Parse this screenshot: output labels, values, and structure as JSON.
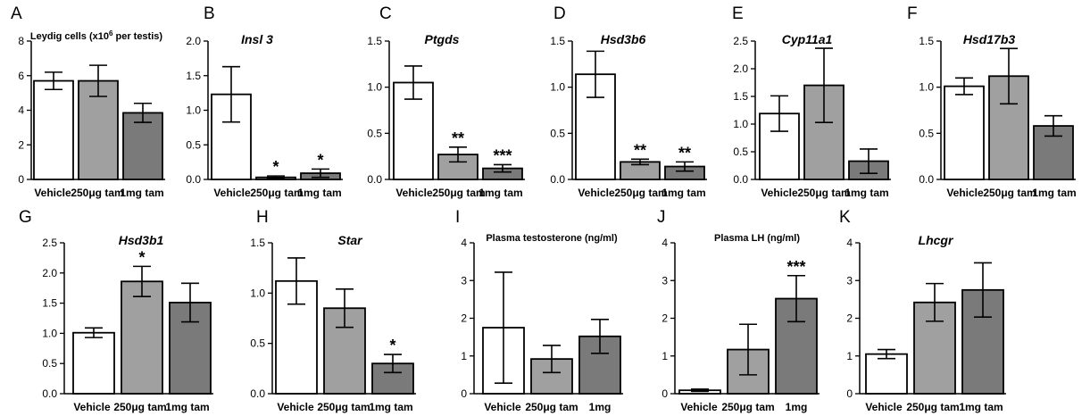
{
  "colors": {
    "vehicle": "#ffffff",
    "tam250": "#a0a0a0",
    "tam1mg": "#7a7a7a",
    "axis": "#000000"
  },
  "chart_data": [
    {
      "letter": "A",
      "type": "bar",
      "title": "Leydig cells (x10",
      "title_sup": "6",
      "title_tail": " per testis)",
      "title_italic": false,
      "categories": [
        "Vehicle",
        "250μg tam",
        "1mg tam"
      ],
      "values": [
        5.7,
        5.7,
        3.85
      ],
      "errors": [
        0.5,
        0.9,
        0.55
      ],
      "ylim": [
        0,
        8
      ],
      "yticks": [
        "0",
        "2",
        "4",
        "6",
        "8"
      ],
      "signif": [
        "",
        "",
        ""
      ]
    },
    {
      "letter": "B",
      "type": "bar",
      "title": "Insl 3",
      "title_italic": true,
      "categories": [
        "Vehicle",
        "250μg tam",
        "1mg tam"
      ],
      "values": [
        1.23,
        0.03,
        0.09
      ],
      "errors": [
        0.4,
        0.02,
        0.06
      ],
      "ylim": [
        0,
        2.0
      ],
      "yticks": [
        "0.0",
        "0.5",
        "1.0",
        "1.5",
        "2.0"
      ],
      "signif": [
        "",
        "*",
        "*"
      ]
    },
    {
      "letter": "C",
      "type": "bar",
      "title": "Ptgds",
      "title_italic": true,
      "categories": [
        "Vehicle",
        "250μg tam",
        "1mg tam"
      ],
      "values": [
        1.05,
        0.27,
        0.12
      ],
      "errors": [
        0.18,
        0.08,
        0.04
      ],
      "ylim": [
        0,
        1.5
      ],
      "yticks": [
        "0.0",
        "0.5",
        "1.0",
        "1.5"
      ],
      "signif": [
        "",
        "**",
        "***"
      ]
    },
    {
      "letter": "D",
      "type": "bar",
      "title": "Hsd3b6",
      "title_italic": true,
      "categories": [
        "Vehicle",
        "250μg tam",
        "1mg tam"
      ],
      "values": [
        1.14,
        0.19,
        0.14
      ],
      "errors": [
        0.25,
        0.03,
        0.05
      ],
      "ylim": [
        0,
        1.5
      ],
      "yticks": [
        "0.0",
        "0.5",
        "1.0",
        "1.5"
      ],
      "signif": [
        "",
        "**",
        "**"
      ]
    },
    {
      "letter": "E",
      "type": "bar",
      "title": "Cyp11a1",
      "title_italic": true,
      "categories": [
        "Vehicle",
        "250μg tam",
        "1mg tam"
      ],
      "values": [
        1.19,
        1.7,
        0.33
      ],
      "errors": [
        0.32,
        0.67,
        0.22
      ],
      "ylim": [
        0,
        2.5
      ],
      "yticks": [
        "0.0",
        "0.5",
        "1.0",
        "1.5",
        "2.0",
        "2.5"
      ],
      "signif": [
        "",
        "",
        ""
      ]
    },
    {
      "letter": "F",
      "type": "bar",
      "title": "Hsd17b3",
      "title_italic": true,
      "categories": [
        "Vehicle",
        "250μg tam",
        "1mg tam"
      ],
      "values": [
        1.01,
        1.12,
        0.58
      ],
      "errors": [
        0.09,
        0.3,
        0.11
      ],
      "ylim": [
        0,
        1.5
      ],
      "yticks": [
        "0.0",
        "0.5",
        "1.0",
        "1.5"
      ],
      "signif": [
        "",
        "",
        ""
      ]
    },
    {
      "letter": "G",
      "type": "bar",
      "title": "Hsd3b1",
      "title_italic": true,
      "categories": [
        "Vehicle",
        "250μg tam",
        "1mg tam"
      ],
      "values": [
        1.01,
        1.86,
        1.51
      ],
      "errors": [
        0.08,
        0.25,
        0.32
      ],
      "ylim": [
        0,
        2.5
      ],
      "yticks": [
        "0.0",
        "0.5",
        "1.0",
        "1.5",
        "2.0",
        "2.5"
      ],
      "signif": [
        "",
        "*",
        ""
      ]
    },
    {
      "letter": "H",
      "type": "bar",
      "title": "Star",
      "title_italic": true,
      "categories": [
        "Vehicle",
        "250μg tam",
        "1mg tam"
      ],
      "values": [
        1.12,
        0.85,
        0.3
      ],
      "errors": [
        0.23,
        0.19,
        0.09
      ],
      "ylim": [
        0,
        1.5
      ],
      "yticks": [
        "0.0",
        "0.5",
        "1.0",
        "1.5"
      ],
      "signif": [
        "",
        "",
        "*"
      ]
    },
    {
      "letter": "I",
      "type": "bar",
      "title": "Plasma testosterone (ng/ml)",
      "title_italic": false,
      "categories": [
        "Vehicle",
        "250μg tam",
        "1mg"
      ],
      "values": [
        1.75,
        0.92,
        1.52
      ],
      "errors": [
        1.47,
        0.36,
        0.45
      ],
      "ylim": [
        0,
        4
      ],
      "yticks": [
        "0",
        "1",
        "2",
        "3",
        "4"
      ],
      "signif": [
        "",
        "",
        ""
      ]
    },
    {
      "letter": "J",
      "type": "bar",
      "title": "Plasma LH (ng/ml)",
      "title_italic": false,
      "categories": [
        "Vehicle",
        "250μg tam",
        "1mg"
      ],
      "values": [
        0.09,
        1.17,
        2.52
      ],
      "errors": [
        0.03,
        0.67,
        0.61
      ],
      "ylim": [
        0,
        4
      ],
      "yticks": [
        "0",
        "1",
        "2",
        "3",
        "4"
      ],
      "signif": [
        "",
        "",
        "***"
      ]
    },
    {
      "letter": "K",
      "type": "bar",
      "title": "Lhcgr",
      "title_italic": true,
      "categories": [
        "Vehicle",
        "250μg tam",
        "1mg tam"
      ],
      "values": [
        1.05,
        2.42,
        2.75
      ],
      "errors": [
        0.12,
        0.5,
        0.72
      ],
      "ylim": [
        0,
        4
      ],
      "yticks": [
        "0",
        "1",
        "2",
        "3",
        "4"
      ],
      "signif": [
        "",
        "",
        ""
      ]
    }
  ]
}
